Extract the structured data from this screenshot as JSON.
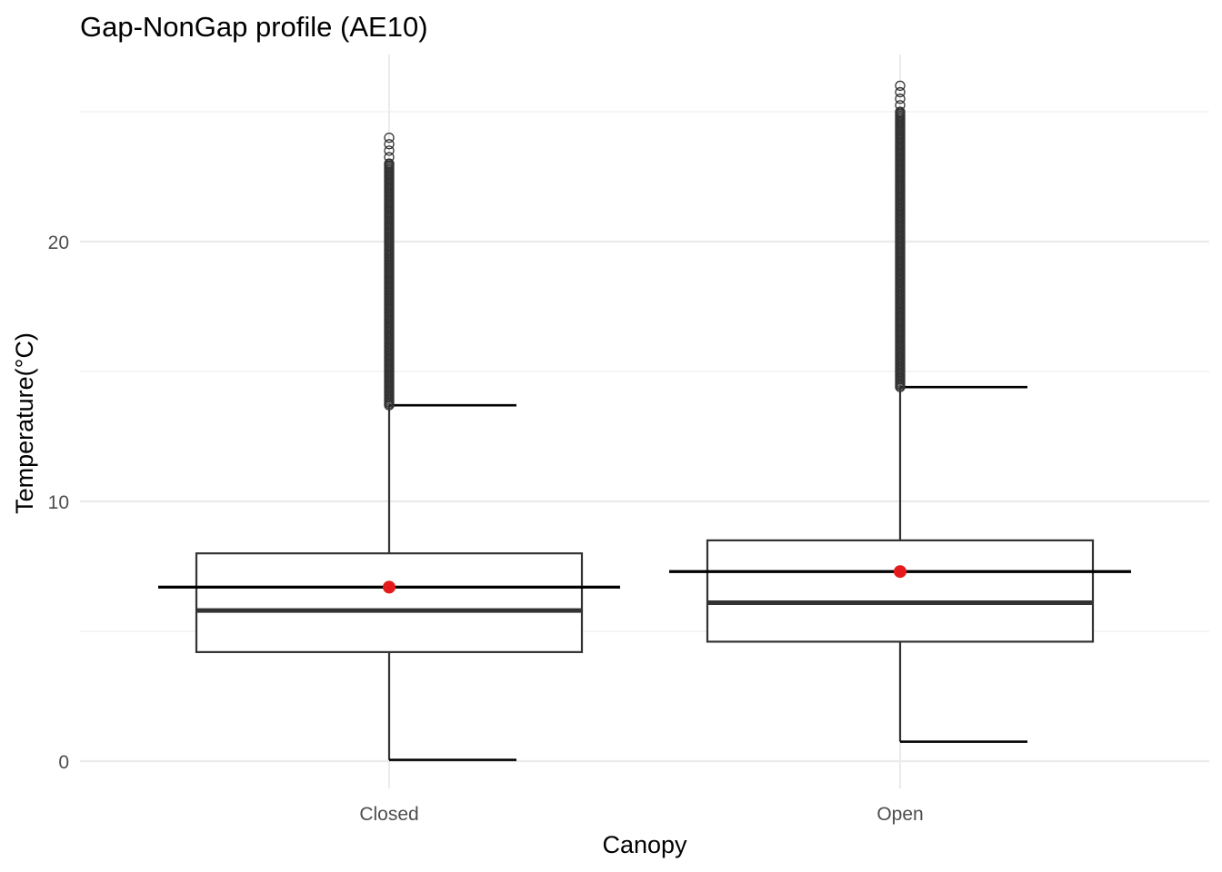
{
  "chart_data": {
    "type": "box",
    "title": "Gap-NonGap profile (AE10)",
    "xlabel": "Canopy",
    "ylabel": "Temperature(°C)",
    "ylim": [
      -1.0,
      27.0
    ],
    "yticks": [
      0,
      10,
      20
    ],
    "minor_yticks": [
      5,
      15,
      25
    ],
    "grid": true,
    "categories": [
      "Closed",
      "Open"
    ],
    "boxes": [
      {
        "category": "Closed",
        "min": 0.05,
        "q1": 4.2,
        "median": 5.8,
        "q3": 8.0,
        "max": 13.7,
        "mean": 6.7,
        "outliers_range": [
          13.7,
          24.2
        ]
      },
      {
        "category": "Open",
        "min": 0.75,
        "q1": 4.6,
        "median": 6.1,
        "q3": 8.5,
        "max": 14.4,
        "mean": 7.3,
        "outliers_range": [
          14.4,
          26.2
        ]
      }
    ],
    "colors": {
      "mean_point": "#e41a1c",
      "box_outline": "#333333",
      "gridline": "#ebebeb"
    }
  }
}
